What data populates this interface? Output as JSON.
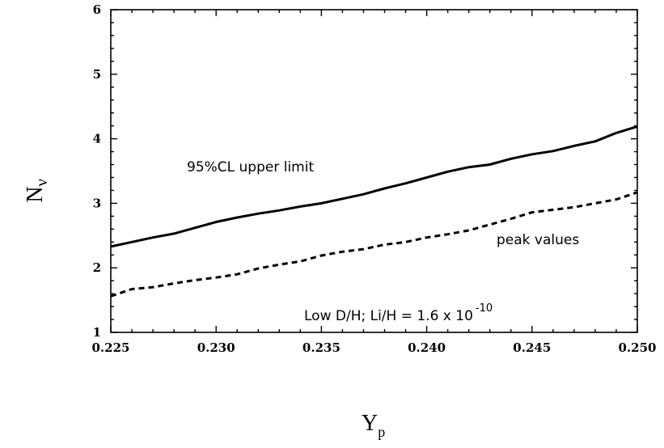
{
  "chart_data": {
    "type": "line",
    "xlabel": "Y",
    "xlabel_sub": "p",
    "ylabel": "N",
    "ylabel_sub": "ν",
    "xlim": [
      0.225,
      0.25
    ],
    "ylim": [
      1,
      6
    ],
    "xticks": [
      "0.225",
      "0.230",
      "0.235",
      "0.240",
      "0.245",
      "0.250"
    ],
    "yticks": [
      "1",
      "2",
      "3",
      "4",
      "5",
      "6"
    ],
    "grid": false,
    "annotations": {
      "upper_label": "95%CL upper limit",
      "peak_label": "peak values",
      "condition_label": "Low D/H; Li/H = 1.6 x 10",
      "condition_exponent": "-10"
    },
    "series": [
      {
        "style": "solid",
        "x": [
          0.225,
          0.226,
          0.227,
          0.228,
          0.229,
          0.23,
          0.231,
          0.232,
          0.233,
          0.234,
          0.235,
          0.236,
          0.237,
          0.238,
          0.239,
          0.24,
          0.241,
          0.242,
          0.243,
          0.244,
          0.245,
          0.246,
          0.247,
          0.248,
          0.249,
          0.25
        ],
        "y": [
          2.33,
          2.4,
          2.47,
          2.53,
          2.62,
          2.71,
          2.78,
          2.84,
          2.89,
          2.95,
          3.0,
          3.07,
          3.14,
          3.23,
          3.31,
          3.4,
          3.49,
          3.56,
          3.6,
          3.69,
          3.76,
          3.81,
          3.89,
          3.96,
          4.09,
          4.19
        ]
      },
      {
        "style": "dashed",
        "x": [
          0.225,
          0.226,
          0.227,
          0.228,
          0.229,
          0.23,
          0.231,
          0.232,
          0.233,
          0.234,
          0.235,
          0.236,
          0.237,
          0.238,
          0.239,
          0.24,
          0.241,
          0.242,
          0.243,
          0.244,
          0.245,
          0.246,
          0.247,
          0.248,
          0.249,
          0.25
        ],
        "y": [
          1.56,
          1.67,
          1.7,
          1.76,
          1.81,
          1.85,
          1.9,
          1.99,
          2.05,
          2.1,
          2.19,
          2.25,
          2.29,
          2.36,
          2.4,
          2.47,
          2.52,
          2.58,
          2.67,
          2.76,
          2.86,
          2.9,
          2.94,
          3.0,
          3.06,
          3.17
        ]
      }
    ]
  }
}
